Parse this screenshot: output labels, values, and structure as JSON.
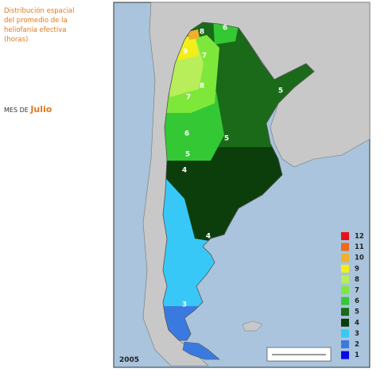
{
  "header": {
    "title_lines": [
      "Distribución espacial",
      "del promedio de la",
      "heliofanía efectiva",
      "(horas)"
    ],
    "month_prefix": "MES DE",
    "month": "Julio"
  },
  "map": {
    "year": "2005",
    "labels": [
      "8",
      "6",
      "9",
      "7",
      "8",
      "7",
      "6",
      "5",
      "5",
      "5",
      "4",
      "4",
      "3"
    ]
  },
  "legend": [
    {
      "value": 12,
      "color": "#e8101a"
    },
    {
      "value": 11,
      "color": "#ec6a1c"
    },
    {
      "value": 10,
      "color": "#f0b02c"
    },
    {
      "value": 9,
      "color": "#f2ee1a"
    },
    {
      "value": 8,
      "color": "#b8ee5a"
    },
    {
      "value": 7,
      "color": "#7ee83a"
    },
    {
      "value": 6,
      "color": "#34c834"
    },
    {
      "value": 5,
      "color": "#1a6a1a"
    },
    {
      "value": 4,
      "color": "#0b3e0b"
    },
    {
      "value": 3,
      "color": "#38c8f8"
    },
    {
      "value": 2,
      "color": "#3a7ae0"
    },
    {
      "value": 1,
      "color": "#0a0ae8"
    }
  ]
}
